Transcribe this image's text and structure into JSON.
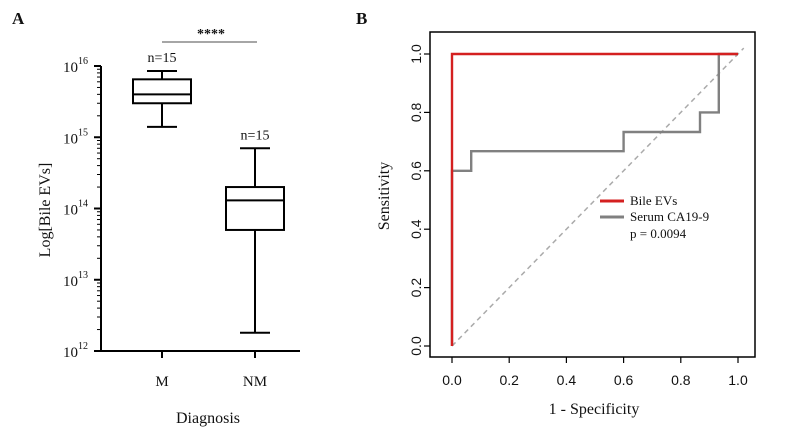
{
  "panels": {
    "a_label": "A",
    "b_label": "B"
  },
  "chart_data": [
    {
      "type": "box",
      "panel": "A",
      "xlabel": "Diagnosis",
      "ylabel": "Log[Bile EVs]",
      "y_scale": "log",
      "ylim": [
        1000000000000.0,
        1e+16
      ],
      "y_ticks": [
        {
          "base": "10",
          "exp": "12",
          "value": 1000000000000.0
        },
        {
          "base": "10",
          "exp": "13",
          "value": 10000000000000.0
        },
        {
          "base": "10",
          "exp": "14",
          "value": 100000000000000.0
        },
        {
          "base": "10",
          "exp": "15",
          "value": 1000000000000000.0
        },
        {
          "base": "10",
          "exp": "16",
          "value": 1e+16
        }
      ],
      "categories": [
        "M",
        "NM"
      ],
      "boxes": [
        {
          "category": "M",
          "n_label": "n=15",
          "min": 1400000000000000.0,
          "q1": 3000000000000000.0,
          "median": 4000000000000000.0,
          "q3": 6500000000000000.0,
          "max": 8500000000000000.0
        },
        {
          "category": "NM",
          "n_label": "n=15",
          "min": 1800000000000.0,
          "q1": 50000000000000.0,
          "median": 130000000000000.0,
          "q3": 200000000000000.0,
          "max": 700000000000000.0
        }
      ],
      "significance": "****"
    },
    {
      "type": "line",
      "panel": "B",
      "xlabel": "1 - Specificity",
      "ylabel": "Sensitivity",
      "xlim": [
        0,
        1
      ],
      "ylim": [
        0,
        1
      ],
      "x_ticks": [
        "0.0",
        "0.2",
        "0.4",
        "0.6",
        "0.8",
        "1.0"
      ],
      "y_ticks": [
        "0.0",
        "0.2",
        "0.4",
        "0.6",
        "0.8",
        "1.0"
      ],
      "series": [
        {
          "name": "Bile EVs",
          "color": "#d42020",
          "x": [
            0,
            0,
            0,
            0.93,
            1
          ],
          "y": [
            0,
            0.6,
            1,
            1,
            1
          ]
        },
        {
          "name": "Serum CA19-9",
          "color": "#808080",
          "x": [
            0,
            0,
            0.067,
            0.067,
            0.6,
            0.6,
            0.867,
            0.867,
            0.933,
            0.933,
            1
          ],
          "y": [
            0,
            0.6,
            0.6,
            0.667,
            0.667,
            0.733,
            0.733,
            0.8,
            0.8,
            1,
            1
          ]
        }
      ],
      "reference_line": {
        "color": "#aaaaaa",
        "style": "dashed"
      },
      "legend_note": "p = 0.0094",
      "legend_position": "center-right"
    }
  ]
}
